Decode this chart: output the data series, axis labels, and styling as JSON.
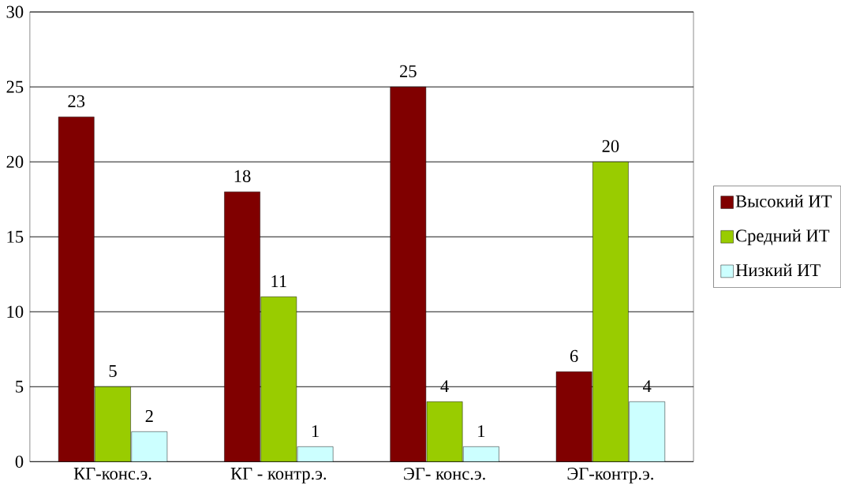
{
  "chart_data": {
    "type": "bar",
    "categories": [
      "КГ-конс.э.",
      "КГ - контр.э.",
      "ЭГ- конс.э.",
      "ЭГ-контр.э."
    ],
    "series": [
      {
        "name": "Высокий ИТ",
        "color": "#800000",
        "values": [
          23,
          18,
          25,
          6
        ]
      },
      {
        "name": "Средний ИТ",
        "color": "#99cc00",
        "values": [
          5,
          11,
          4,
          20
        ]
      },
      {
        "name": "Низкий ИТ",
        "color": "#ccffff",
        "values": [
          2,
          1,
          1,
          4
        ]
      }
    ],
    "ylim": [
      0,
      30
    ],
    "yticks": [
      0,
      5,
      10,
      15,
      20,
      25,
      30
    ],
    "grid": "y",
    "legend": "right",
    "data_labels": true
  }
}
